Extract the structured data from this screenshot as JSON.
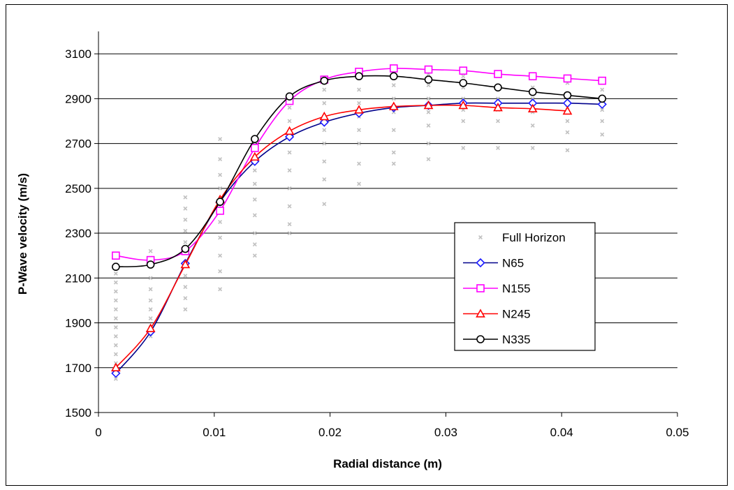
{
  "chart_data": {
    "type": "line",
    "title": "",
    "xlabel": "Radial distance (m)",
    "ylabel": "P-Wave velocity (m/s)",
    "xlim": [
      0,
      0.05
    ],
    "ylim": [
      1500,
      3200
    ],
    "x_ticks": [
      "0",
      "0.01",
      "0.02",
      "0.03",
      "0.04",
      "0.05"
    ],
    "y_ticks": [
      "1500",
      "1700",
      "1900",
      "2100",
      "2300",
      "2500",
      "2700",
      "2900",
      "3100"
    ],
    "grid": "horizontal",
    "legend_position": "right-center",
    "scatter_series": {
      "name": "Full Horizon",
      "marker": "x",
      "color": "#c0c0c0",
      "points": [
        [
          0.0015,
          1650
        ],
        [
          0.0015,
          1680
        ],
        [
          0.0015,
          1720
        ],
        [
          0.0015,
          1760
        ],
        [
          0.0015,
          1800
        ],
        [
          0.0015,
          1840
        ],
        [
          0.0015,
          1880
        ],
        [
          0.0015,
          1920
        ],
        [
          0.0015,
          1960
        ],
        [
          0.0015,
          2000
        ],
        [
          0.0015,
          2040
        ],
        [
          0.0015,
          2080
        ],
        [
          0.0015,
          2120
        ],
        [
          0.0015,
          2160
        ],
        [
          0.0015,
          2190
        ],
        [
          0.0045,
          1840
        ],
        [
          0.0045,
          1880
        ],
        [
          0.0045,
          1920
        ],
        [
          0.0045,
          1960
        ],
        [
          0.0045,
          2000
        ],
        [
          0.0045,
          2050
        ],
        [
          0.0045,
          2100
        ],
        [
          0.0045,
          2150
        ],
        [
          0.0045,
          2190
        ],
        [
          0.0045,
          2220
        ],
        [
          0.0075,
          1960
        ],
        [
          0.0075,
          2010
        ],
        [
          0.0075,
          2060
        ],
        [
          0.0075,
          2110
        ],
        [
          0.0075,
          2160
        ],
        [
          0.0075,
          2210
        ],
        [
          0.0075,
          2260
        ],
        [
          0.0075,
          2310
        ],
        [
          0.0075,
          2360
        ],
        [
          0.0075,
          2410
        ],
        [
          0.0075,
          2460
        ],
        [
          0.0105,
          2050
        ],
        [
          0.0105,
          2130
        ],
        [
          0.0105,
          2200
        ],
        [
          0.0105,
          2280
        ],
        [
          0.0105,
          2350
        ],
        [
          0.0105,
          2430
        ],
        [
          0.0105,
          2500
        ],
        [
          0.0105,
          2560
        ],
        [
          0.0105,
          2630
        ],
        [
          0.0105,
          2720
        ],
        [
          0.0135,
          2200
        ],
        [
          0.0135,
          2250
        ],
        [
          0.0135,
          2300
        ],
        [
          0.0135,
          2380
        ],
        [
          0.0135,
          2450
        ],
        [
          0.0135,
          2520
        ],
        [
          0.0135,
          2580
        ],
        [
          0.0135,
          2640
        ],
        [
          0.0135,
          2700
        ],
        [
          0.0165,
          2300
        ],
        [
          0.0165,
          2340
        ],
        [
          0.0165,
          2420
        ],
        [
          0.0165,
          2500
        ],
        [
          0.0165,
          2580
        ],
        [
          0.0165,
          2660
        ],
        [
          0.0165,
          2740
        ],
        [
          0.0165,
          2800
        ],
        [
          0.0165,
          2860
        ],
        [
          0.0165,
          2920
        ],
        [
          0.0195,
          2430
        ],
        [
          0.0195,
          2540
        ],
        [
          0.0195,
          2620
        ],
        [
          0.0195,
          2700
        ],
        [
          0.0195,
          2760
        ],
        [
          0.0195,
          2820
        ],
        [
          0.0195,
          2880
        ],
        [
          0.0195,
          2940
        ],
        [
          0.0195,
          2990
        ],
        [
          0.0225,
          2520
        ],
        [
          0.0225,
          2610
        ],
        [
          0.0225,
          2700
        ],
        [
          0.0225,
          2760
        ],
        [
          0.0225,
          2820
        ],
        [
          0.0225,
          2880
        ],
        [
          0.0225,
          2940
        ],
        [
          0.0225,
          3000
        ],
        [
          0.0225,
          3020
        ],
        [
          0.0255,
          2610
        ],
        [
          0.0255,
          2660
        ],
        [
          0.0255,
          2760
        ],
        [
          0.0255,
          2840
        ],
        [
          0.0255,
          2900
        ],
        [
          0.0255,
          2960
        ],
        [
          0.0255,
          3010
        ],
        [
          0.0255,
          3040
        ],
        [
          0.0285,
          2630
        ],
        [
          0.0285,
          2700
        ],
        [
          0.0285,
          2780
        ],
        [
          0.0285,
          2840
        ],
        [
          0.0285,
          2900
        ],
        [
          0.0285,
          2960
        ],
        [
          0.0285,
          3010
        ],
        [
          0.0315,
          2680
        ],
        [
          0.0315,
          2800
        ],
        [
          0.0315,
          2850
        ],
        [
          0.0315,
          2900
        ],
        [
          0.0315,
          2950
        ],
        [
          0.0315,
          3000
        ],
        [
          0.0345,
          2680
        ],
        [
          0.0345,
          2800
        ],
        [
          0.0345,
          2850
        ],
        [
          0.0345,
          2900
        ],
        [
          0.0345,
          2950
        ],
        [
          0.0345,
          3000
        ],
        [
          0.0375,
          2680
        ],
        [
          0.0375,
          2780
        ],
        [
          0.0375,
          2840
        ],
        [
          0.0375,
          2900
        ],
        [
          0.0375,
          2950
        ],
        [
          0.0375,
          2990
        ],
        [
          0.0405,
          2670
        ],
        [
          0.0405,
          2750
        ],
        [
          0.0405,
          2800
        ],
        [
          0.0405,
          2860
        ],
        [
          0.0405,
          2920
        ],
        [
          0.0405,
          2970
        ],
        [
          0.0435,
          2740
        ],
        [
          0.0435,
          2800
        ],
        [
          0.0435,
          2850
        ],
        [
          0.0435,
          2900
        ],
        [
          0.0435,
          2940
        ]
      ]
    },
    "series": [
      {
        "name": "N65",
        "color": "#00008b",
        "marker_color": "#1a1aff",
        "marker": "diamond",
        "x": [
          0.0015,
          0.0045,
          0.0075,
          0.0105,
          0.0135,
          0.0165,
          0.0195,
          0.0225,
          0.0255,
          0.0285,
          0.0315,
          0.0345,
          0.0375,
          0.0405,
          0.0435
        ],
        "y": [
          1675,
          1860,
          2165,
          2440,
          2620,
          2730,
          2795,
          2835,
          2860,
          2870,
          2880,
          2880,
          2880,
          2880,
          2875
        ]
      },
      {
        "name": "N155",
        "color": "#ff00ff",
        "marker_color": "#ff00ff",
        "marker": "square",
        "x": [
          0.0015,
          0.0045,
          0.0075,
          0.0105,
          0.0135,
          0.0165,
          0.0195,
          0.0225,
          0.0255,
          0.0285,
          0.0315,
          0.0345,
          0.0375,
          0.0405,
          0.0435
        ],
        "y": [
          2200,
          2180,
          2220,
          2400,
          2680,
          2890,
          2985,
          3020,
          3035,
          3030,
          3025,
          3010,
          3000,
          2990,
          2980
        ]
      },
      {
        "name": "N245",
        "color": "#ff0000",
        "marker_color": "#ff0000",
        "marker": "triangle",
        "x": [
          0.0015,
          0.0045,
          0.0075,
          0.0105,
          0.0135,
          0.0165,
          0.0195,
          0.0225,
          0.0255,
          0.0285,
          0.0315,
          0.0345,
          0.0375,
          0.0405
        ],
        "y": [
          1700,
          1875,
          2160,
          2450,
          2640,
          2755,
          2820,
          2850,
          2865,
          2870,
          2870,
          2860,
          2855,
          2845
        ]
      },
      {
        "name": "N335",
        "color": "#000000",
        "marker_color": "#000000",
        "marker": "circle",
        "x": [
          0.0015,
          0.0045,
          0.0075,
          0.0105,
          0.0135,
          0.0165,
          0.0195,
          0.0225,
          0.0255,
          0.0285,
          0.0315,
          0.0345,
          0.0375,
          0.0405,
          0.0435
        ],
        "y": [
          2150,
          2160,
          2230,
          2440,
          2720,
          2910,
          2980,
          3000,
          3000,
          2985,
          2970,
          2950,
          2930,
          2915,
          2900
        ]
      }
    ]
  }
}
